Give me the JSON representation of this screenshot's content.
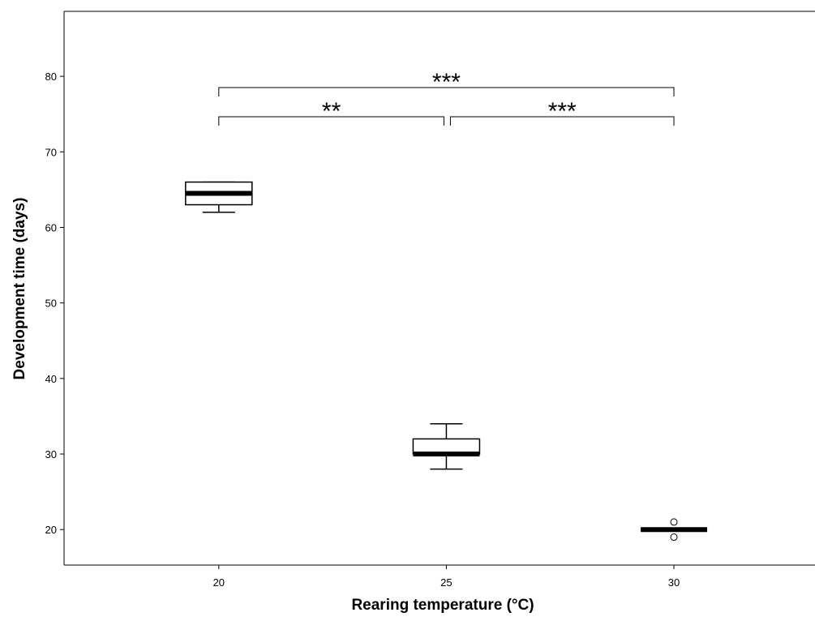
{
  "chart_data": {
    "type": "box",
    "xlabel": "Rearing temperature (°C)",
    "ylabel": "Development time (days)",
    "xlim": [
      16.6,
      33.1
    ],
    "xticks": [
      20,
      25,
      30
    ],
    "ylim": [
      15.3,
      88.6
    ],
    "yticks": [
      20,
      30,
      40,
      50,
      60,
      70,
      80
    ],
    "boxes": [
      {
        "x": 20,
        "whislo": 62,
        "q1": 63,
        "med": 64.5,
        "q3": 66,
        "whishi": 66,
        "fliers": []
      },
      {
        "x": 25,
        "whislo": 28,
        "q1": 30,
        "med": 30,
        "q3": 32,
        "whishi": 34,
        "fliers": []
      },
      {
        "x": 30,
        "whislo": 20,
        "q1": 20,
        "med": 20,
        "q3": 20,
        "whishi": 20,
        "fliers": [
          21,
          19
        ]
      }
    ],
    "annotations": [
      {
        "x1": 20,
        "x2": 25,
        "text": "**"
      },
      {
        "x1": 25,
        "x2": 30,
        "text": "***"
      },
      {
        "x1": 20,
        "x2": 30,
        "text": "***"
      }
    ]
  }
}
